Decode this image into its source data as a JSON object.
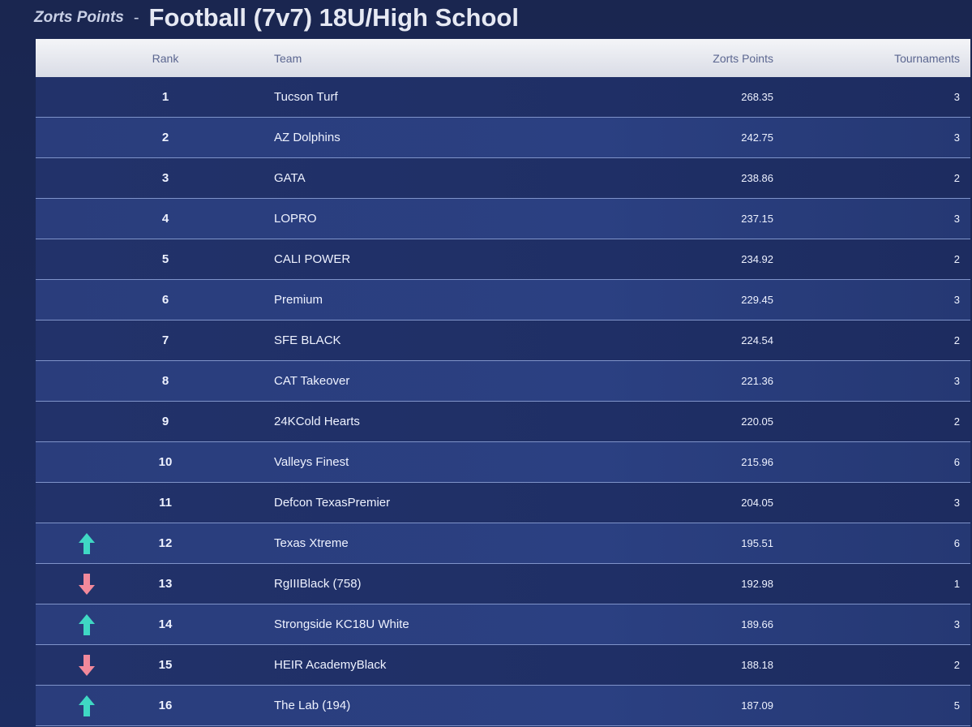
{
  "header": {
    "brand": "Zorts Points",
    "separator": "-",
    "title": "Football (7v7) 18U/High School"
  },
  "table": {
    "columns": [
      "Rank",
      "Team",
      "Zorts Points",
      "Tournaments"
    ],
    "rows": [
      {
        "rank": 1,
        "team": "Tucson Turf",
        "points": 268.35,
        "tournaments": 3
      },
      {
        "rank": 2,
        "team": "AZ Dolphins",
        "points": 242.75,
        "tournaments": 3
      },
      {
        "rank": 3,
        "team": "GATA",
        "points": 238.86,
        "tournaments": 2
      },
      {
        "rank": 4,
        "team": "LOPRO",
        "points": 237.15,
        "tournaments": 3
      },
      {
        "rank": 5,
        "team": "CALI POWER",
        "points": 234.92,
        "tournaments": 2
      },
      {
        "rank": 6,
        "team": "Premium",
        "points": 229.45,
        "tournaments": 3
      },
      {
        "rank": 7,
        "team": "SFE BLACK",
        "points": 224.54,
        "tournaments": 2
      },
      {
        "rank": 8,
        "team": "CAT Takeover",
        "points": 221.36,
        "tournaments": 3
      },
      {
        "rank": 9,
        "team": "24KCold Hearts",
        "points": 220.05,
        "tournaments": 2
      },
      {
        "rank": 10,
        "team": "Valleys Finest",
        "points": 215.96,
        "tournaments": 6
      },
      {
        "rank": 11,
        "team": "Defcon TexasPremier",
        "points": 204.05,
        "tournaments": 3
      },
      {
        "rank": 12,
        "team": "Texas Xtreme",
        "points": 195.51,
        "tournaments": 6,
        "trend": "up"
      },
      {
        "rank": 13,
        "team": "RgIIIBlack (758)",
        "points": 192.98,
        "tournaments": 1,
        "trend": "down"
      },
      {
        "rank": 14,
        "team": "Strongside KC18U White",
        "points": 189.66,
        "tournaments": 3,
        "trend": "up"
      },
      {
        "rank": 15,
        "team": "HEIR AcademyBlack",
        "points": 188.18,
        "tournaments": 2,
        "trend": "down"
      },
      {
        "rank": 16,
        "team": "The Lab (194)",
        "points": 187.09,
        "tournaments": 5,
        "trend": "up"
      }
    ]
  }
}
